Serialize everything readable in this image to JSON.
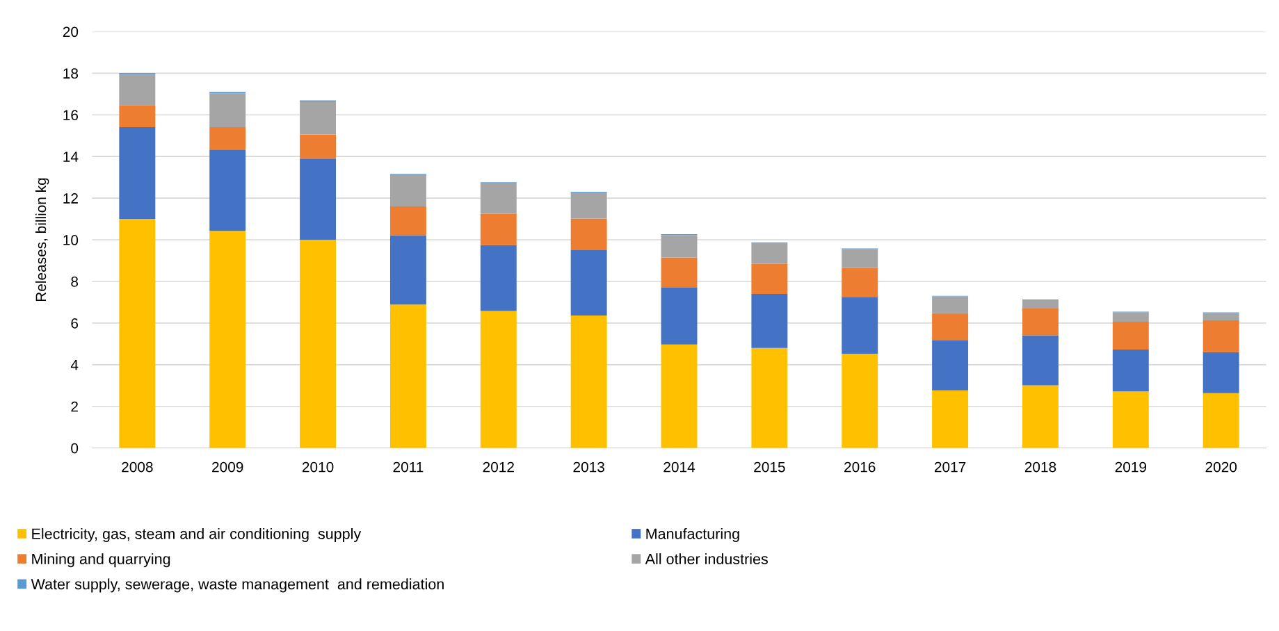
{
  "chart_data": {
    "type": "bar",
    "stacked": true,
    "ylabel": "Releases, billion kg",
    "categories": [
      "2008",
      "2009",
      "2010",
      "2011",
      "2012",
      "2013",
      "2014",
      "2015",
      "2016",
      "2017",
      "2018",
      "2019",
      "2020"
    ],
    "series": [
      {
        "name": "Electricity, gas, steam and air conditioning  supply",
        "color": "#ffc000",
        "values": [
          11.0,
          10.43,
          10.0,
          6.89,
          6.58,
          6.36,
          4.97,
          4.8,
          4.53,
          2.77,
          3.01,
          2.72,
          2.63
        ]
      },
      {
        "name": "Manufacturing",
        "color": "#4472c4",
        "values": [
          4.41,
          3.9,
          3.9,
          3.33,
          3.16,
          3.14,
          2.73,
          2.6,
          2.73,
          2.42,
          2.4,
          2.01,
          1.97
        ]
      },
      {
        "name": "Mining and quarrying",
        "color": "#ed7d31",
        "values": [
          1.06,
          1.08,
          1.16,
          1.38,
          1.51,
          1.52,
          1.45,
          1.45,
          1.39,
          1.28,
          1.29,
          1.33,
          1.53
        ]
      },
      {
        "name": "All other industries",
        "color": "#a5a5a5",
        "values": [
          1.48,
          1.62,
          1.58,
          1.51,
          1.46,
          1.23,
          1.07,
          0.99,
          0.9,
          0.81,
          0.4,
          0.46,
          0.35
        ]
      },
      {
        "name": "Water supply, sewerage, waste management  and remediation",
        "color": "#5b9bd5",
        "values": [
          0.06,
          0.07,
          0.05,
          0.05,
          0.05,
          0.05,
          0.05,
          0.04,
          0.03,
          0.03,
          0.03,
          0.03,
          0.03
        ]
      }
    ],
    "ylim": [
      0,
      20
    ],
    "yticks": [
      0,
      2,
      4,
      6,
      8,
      10,
      12,
      14,
      16,
      18,
      20
    ],
    "grid": "y",
    "legend": "bottom"
  }
}
